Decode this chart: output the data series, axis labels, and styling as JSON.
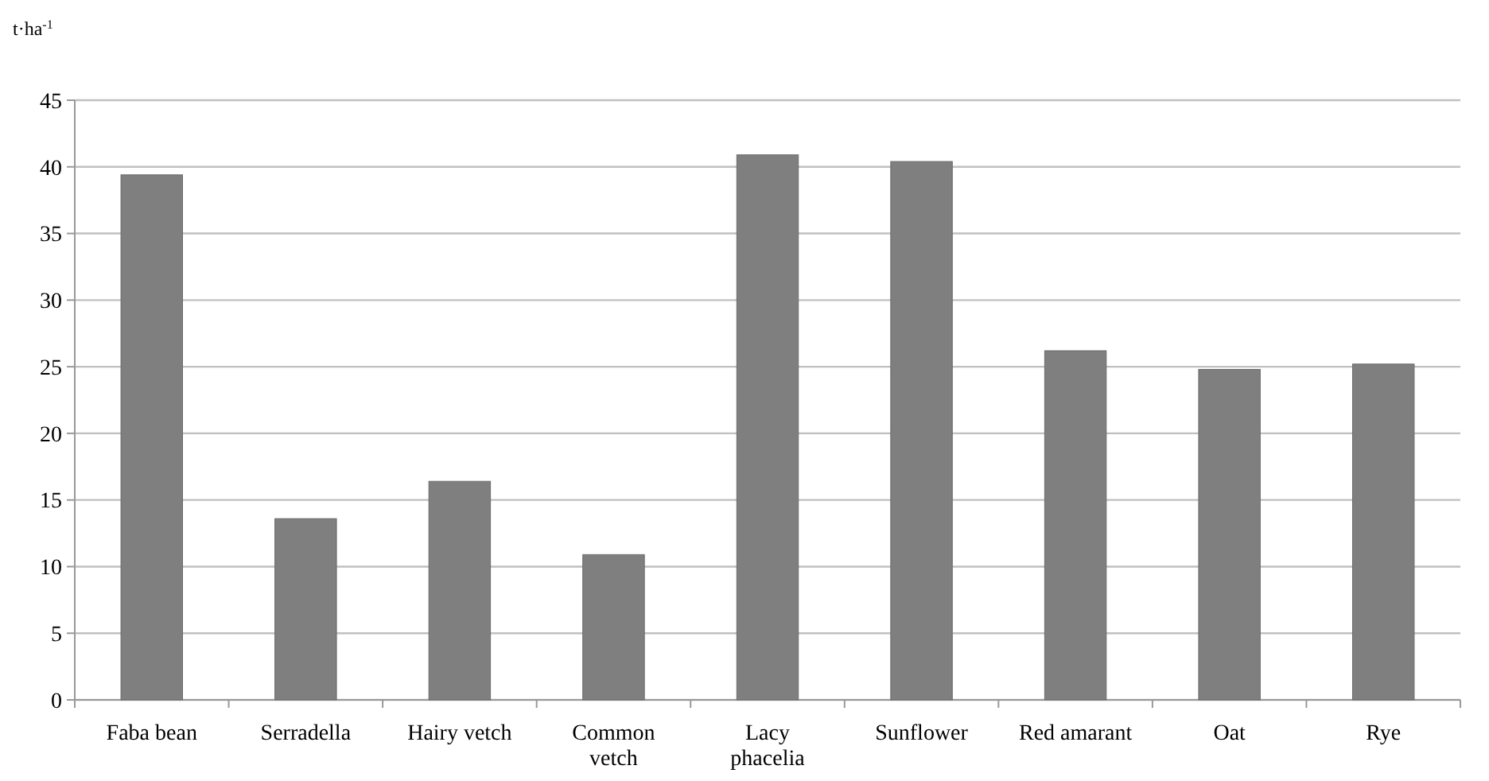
{
  "chart_data": {
    "type": "bar",
    "ylabel": "t·ha$^{-1}$",
    "categories": [
      "Faba bean",
      "Serradella",
      "Hairy vetch",
      "Common vetch",
      "Lacy phacelia",
      "Sunflower",
      "Red amarant",
      "Oat",
      "Rye"
    ],
    "values": [
      39.4,
      13.6,
      16.4,
      10.9,
      40.9,
      40.4,
      26.2,
      24.8,
      25.2
    ],
    "color": "#7f7f7f",
    "ylim": [
      0,
      45
    ],
    "yticks": [
      0,
      5,
      10,
      15,
      20,
      25,
      30,
      35,
      40,
      45
    ],
    "grid": "y"
  }
}
